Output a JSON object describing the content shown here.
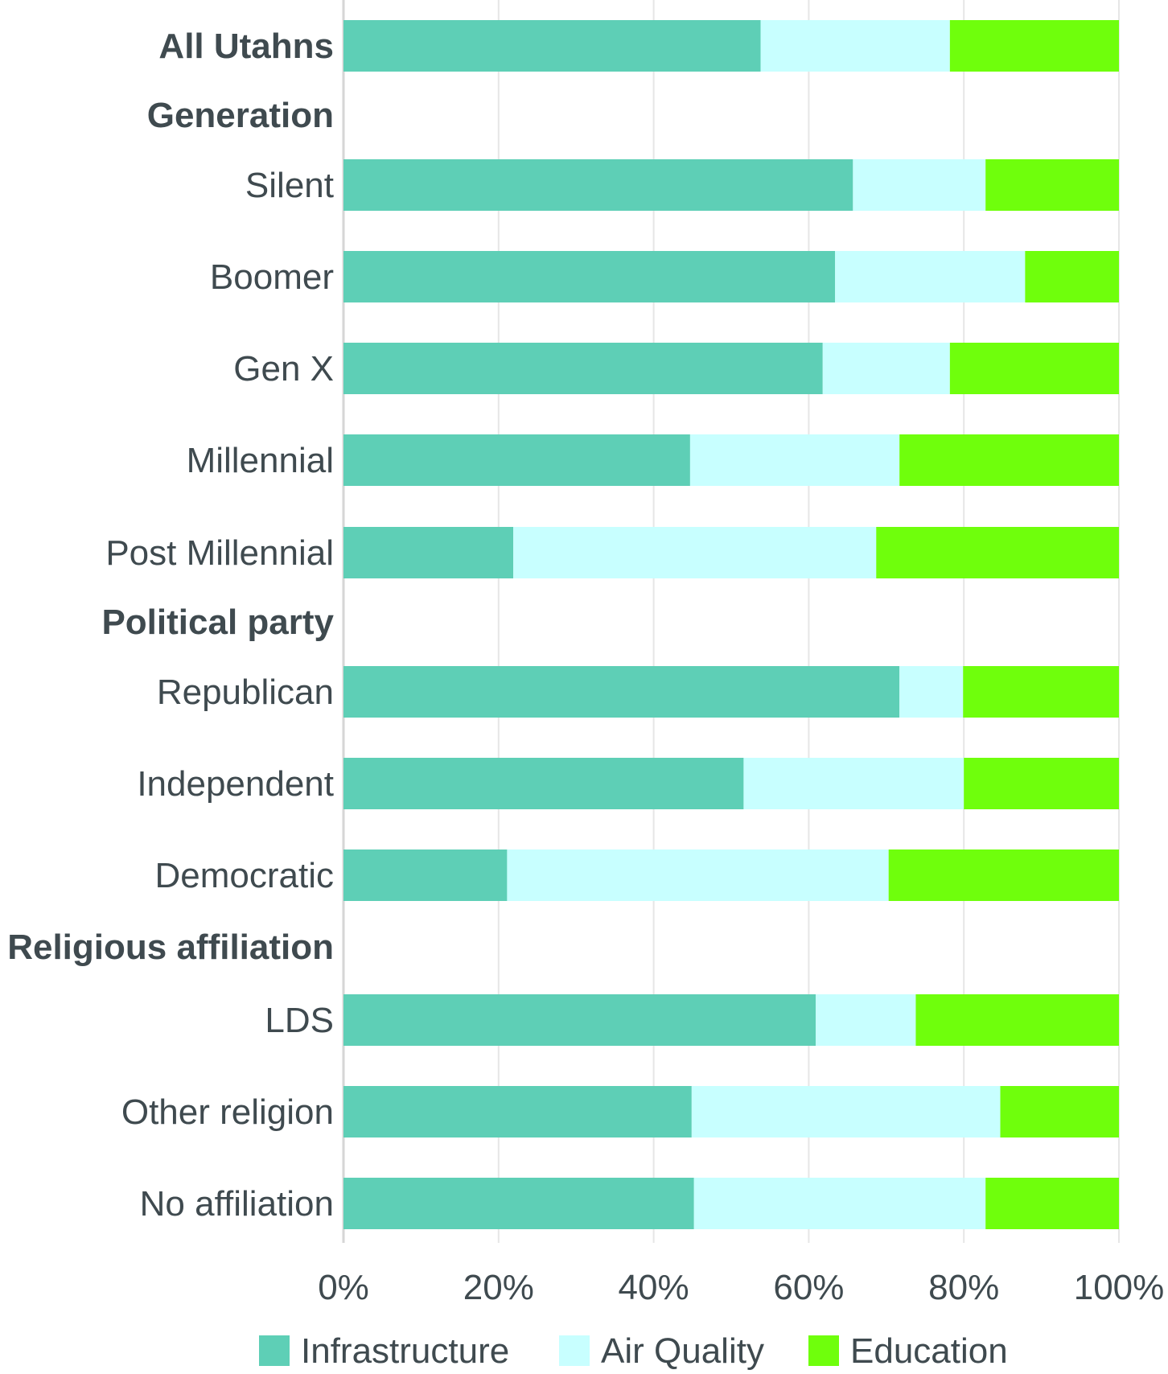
{
  "chart_data": {
    "type": "bar",
    "orientation": "horizontal",
    "stacked": true,
    "percent": true,
    "colors": {
      "Infrastructure": "#5ecfb6",
      "Air Quality": "#c8ffff",
      "Education": "#6fff0c"
    },
    "rows": [
      {
        "label": "All Utahns",
        "group": true,
        "values": [
          53.8,
          24.4,
          21.8
        ]
      },
      {
        "label": "Generation",
        "group": true,
        "heading": true
      },
      {
        "label": "Silent",
        "values": [
          65.7,
          17.1,
          17.2
        ]
      },
      {
        "label": "Boomer",
        "values": [
          63.4,
          24.5,
          12.1
        ]
      },
      {
        "label": "Gen X",
        "values": [
          61.8,
          16.4,
          21.8
        ]
      },
      {
        "label": "Millennial",
        "values": [
          44.7,
          27.0,
          28.3
        ]
      },
      {
        "label": "Post Millennial",
        "values": [
          21.9,
          46.8,
          31.3
        ]
      },
      {
        "label": "Political party",
        "group": true,
        "heading": true
      },
      {
        "label": "Republican",
        "values": [
          71.7,
          8.2,
          20.1
        ]
      },
      {
        "label": "Independent",
        "values": [
          51.6,
          28.4,
          20.0
        ]
      },
      {
        "label": "Democratic",
        "values": [
          21.1,
          49.2,
          29.7
        ]
      },
      {
        "label": "Religious affiliation",
        "group": true,
        "heading": true
      },
      {
        "label": "LDS",
        "values": [
          60.9,
          12.9,
          26.2
        ]
      },
      {
        "label": "Other religion",
        "values": [
          44.9,
          39.8,
          15.3
        ]
      },
      {
        "label": "No affiliation",
        "values": [
          45.2,
          37.6,
          17.2
        ]
      }
    ],
    "series": [
      {
        "name": "Infrastructure"
      },
      {
        "name": "Air Quality"
      },
      {
        "name": "Education"
      }
    ],
    "x_ticks": [
      "0%",
      "20%",
      "40%",
      "60%",
      "80%",
      "100%"
    ],
    "xlim": [
      0,
      100
    ],
    "grid": true,
    "legend_position": "bottom"
  }
}
